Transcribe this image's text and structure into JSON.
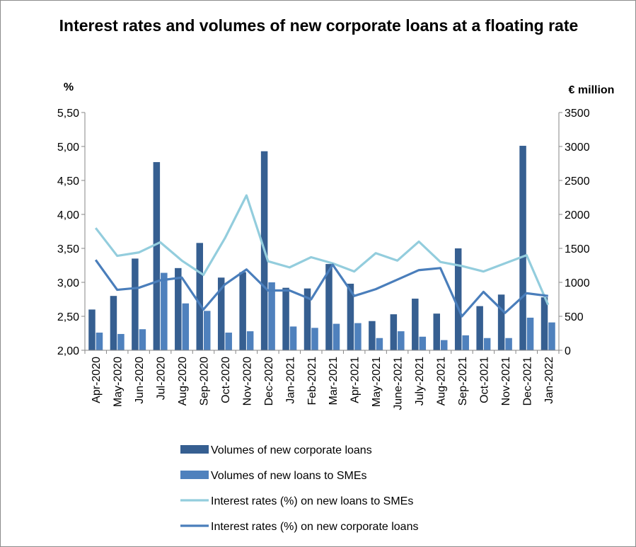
{
  "chart_data": {
    "type": "bar",
    "title": "Interest rates and volumes of new corporate loans at a floating rate",
    "y_left_label": "%",
    "y_right_label": "€ million",
    "y_left_range": [
      2.0,
      5.5
    ],
    "y_right_range": [
      0,
      3500
    ],
    "y_left_ticks": [
      "2,00",
      "2,50",
      "3,00",
      "3,50",
      "4,00",
      "4,50",
      "5,00",
      "5,50"
    ],
    "y_right_ticks": [
      "0",
      "500",
      "1000",
      "1500",
      "2000",
      "2500",
      "3000",
      "3500"
    ],
    "categories": [
      "Apr-2020",
      "May-2020",
      "Jun-2020",
      "Jul-2020",
      "Aug-2020",
      "Sep-2020",
      "Oct-2020",
      "Nov-2020",
      "Dec-2020",
      "Jan-2021",
      "Feb-2021",
      "Mar-2021",
      "Apr-2021",
      "May-2021",
      "June-2021",
      "July-2021",
      "Aug-2021",
      "Sep-2021",
      "Oct-2021",
      "Nov-2021",
      "Dec-2021",
      "Jan-2022"
    ],
    "bar_series": [
      {
        "name": "Volumes of new corporate loans",
        "axis": "right",
        "color": "#365f91",
        "values": [
          600,
          800,
          1350,
          2770,
          1210,
          1580,
          1070,
          1150,
          2930,
          920,
          910,
          1270,
          980,
          430,
          530,
          760,
          540,
          1500,
          650,
          820,
          3010,
          780
        ]
      },
      {
        "name": "Volumes of new loans to SMEs",
        "axis": "right",
        "color": "#4f81bd",
        "values": [
          260,
          240,
          310,
          1140,
          690,
          580,
          260,
          280,
          1000,
          350,
          330,
          390,
          400,
          180,
          280,
          200,
          150,
          220,
          180,
          180,
          480,
          410
        ]
      }
    ],
    "line_series": [
      {
        "name": "Interest rates (%) on new loans to SMEs",
        "axis": "left",
        "color": "#93cddd",
        "values": [
          3.8,
          3.39,
          3.44,
          3.59,
          3.32,
          3.11,
          3.65,
          4.28,
          3.31,
          3.22,
          3.37,
          3.28,
          3.16,
          3.43,
          3.32,
          3.6,
          3.3,
          3.24,
          3.16,
          3.28,
          3.4,
          2.67
        ]
      },
      {
        "name": "Interest rates (%) on new corporate loans",
        "axis": "left",
        "color": "#4a7ebb",
        "values": [
          3.33,
          2.89,
          2.92,
          3.03,
          3.07,
          2.6,
          2.97,
          3.19,
          2.88,
          2.88,
          2.75,
          3.26,
          2.8,
          2.9,
          3.04,
          3.18,
          3.21,
          2.5,
          2.86,
          2.55,
          2.84,
          2.8
        ]
      }
    ],
    "legend_position": "bottom",
    "grid": false
  }
}
